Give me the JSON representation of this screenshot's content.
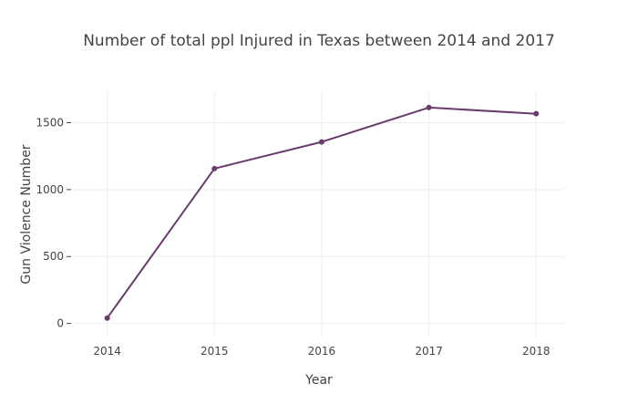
{
  "chart_data": {
    "type": "line",
    "title": "Number of total ppl Injured in Texas between 2014 and 2017",
    "xlabel": "Year",
    "ylabel": "Gun Violence Number",
    "x": [
      2014,
      2015,
      2016,
      2017,
      2018
    ],
    "x_tick_labels": [
      "2014",
      "2015",
      "2016",
      "2017",
      "2018"
    ],
    "y_ticks": [
      0,
      500,
      1000,
      1500
    ],
    "y_tick_labels": [
      "0",
      "500",
      "1000",
      "1500"
    ],
    "xlim": [
      2013.68,
      2018.27
    ],
    "ylim": [
      -105,
      1735
    ],
    "grid": true,
    "series": [
      {
        "values": [
          40,
          1157,
          1356,
          1613,
          1567
        ],
        "color": "#6b3a6e"
      }
    ]
  }
}
